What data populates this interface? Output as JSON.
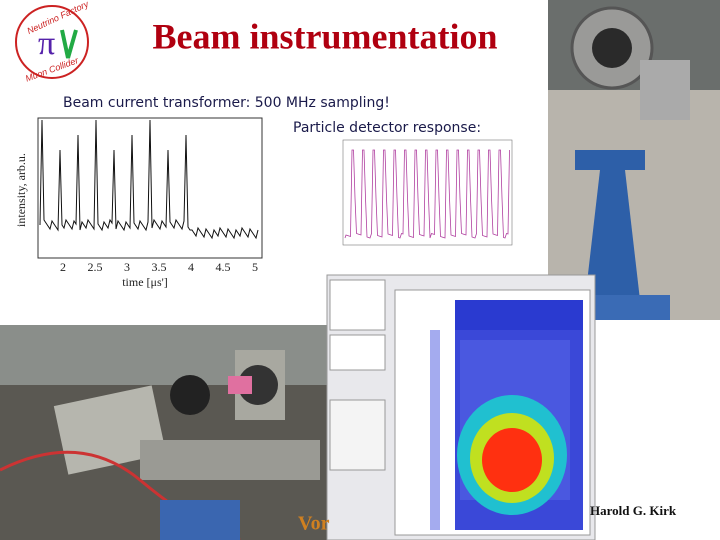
{
  "header": {
    "title": "Beam instrumentation",
    "logo": {
      "top": "Neutrino Factory",
      "bottom": "Muon Collider"
    }
  },
  "captions": [
    "Beam current transformer: 500 MHz sampling!",
    "Particle detector response:"
  ],
  "bct_plot": {
    "y_label": "intensity, arb.u.",
    "x_label": "time [μs']",
    "xticks": [
      2,
      2.5,
      3,
      3.5,
      4,
      4.5,
      5
    ]
  },
  "footer": {
    "author": "Harold G. Kirk",
    "fragment": "Vor"
  }
}
